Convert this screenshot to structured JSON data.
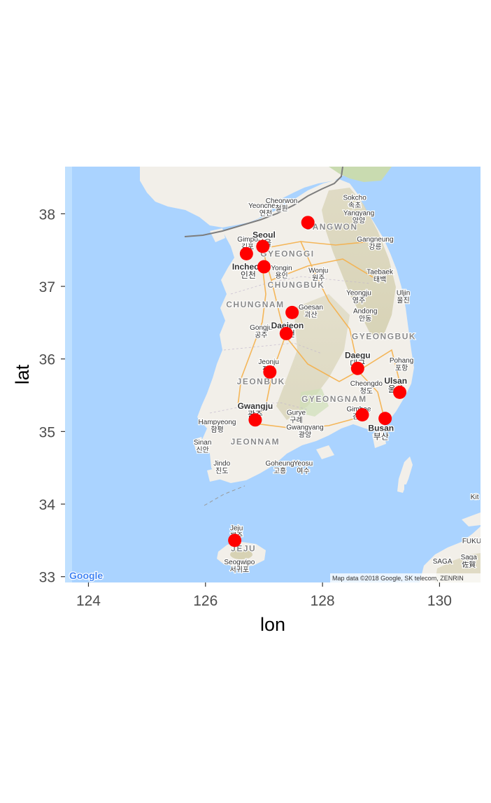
{
  "chart_data": {
    "type": "scatter",
    "xlabel": "lon",
    "ylabel": "lat",
    "xlim": [
      123.6,
      130.7
    ],
    "ylim": [
      32.92,
      38.65
    ],
    "x_ticks": [
      "124",
      "126",
      "128",
      "130"
    ],
    "y_ticks": [
      "33",
      "34",
      "35",
      "36",
      "37",
      "38"
    ],
    "point_color": "#ff0000",
    "points": [
      {
        "x": 127.75,
        "y": 37.88
      },
      {
        "x": 126.98,
        "y": 37.55
      },
      {
        "x": 126.7,
        "y": 37.45
      },
      {
        "x": 127.0,
        "y": 37.27
      },
      {
        "x": 127.48,
        "y": 36.64
      },
      {
        "x": 127.38,
        "y": 36.35
      },
      {
        "x": 128.6,
        "y": 35.87
      },
      {
        "x": 127.1,
        "y": 35.82
      },
      {
        "x": 129.32,
        "y": 35.54
      },
      {
        "x": 128.68,
        "y": 35.23
      },
      {
        "x": 129.07,
        "y": 35.18
      },
      {
        "x": 126.85,
        "y": 35.16
      },
      {
        "x": 126.5,
        "y": 33.5
      }
    ]
  },
  "map": {
    "water_color": "#aad3ff",
    "land_color": "#f2efe9",
    "logo": "Google",
    "attribution": "Map data ©2018 Google, SK telecom, ZENRIN",
    "place_labels": [
      {
        "id": "yeoncheon",
        "name": "Yeoncheon",
        "local": "연천",
        "lon": 127.03,
        "lat": 38.08
      },
      {
        "id": "cheorwon",
        "name": "Cheorwon",
        "local": "철원",
        "lon": 127.3,
        "lat": 38.15
      },
      {
        "id": "sokcho",
        "name": "Sokcho",
        "local": "속초",
        "lon": 128.55,
        "lat": 38.19
      },
      {
        "id": "yangyang",
        "name": "Yangyang",
        "local": "양양",
        "lon": 128.62,
        "lat": 37.98
      },
      {
        "id": "gimpo",
        "name": "Gimpo",
        "local": "김포",
        "lon": 126.72,
        "lat": 37.62
      },
      {
        "id": "seoul",
        "name": "Seoul",
        "local": "서울",
        "lon": 127.0,
        "lat": 37.67
      },
      {
        "id": "gangneung",
        "name": "Gangneung",
        "local": "강릉",
        "lon": 128.9,
        "lat": 37.62
      },
      {
        "id": "incheon",
        "name": "Incheon",
        "local": "인천",
        "lon": 126.73,
        "lat": 37.23
      },
      {
        "id": "yongin",
        "name": "Yongin",
        "local": "용인",
        "lon": 127.3,
        "lat": 37.22
      },
      {
        "id": "wonju",
        "name": "Wonju",
        "local": "원주",
        "lon": 127.93,
        "lat": 37.19
      },
      {
        "id": "taebaek",
        "name": "Taebaek",
        "local": "태백",
        "lon": 128.98,
        "lat": 37.17
      },
      {
        "id": "yeongju",
        "name": "Yeongju",
        "local": "영주",
        "lon": 128.62,
        "lat": 36.88
      },
      {
        "id": "uljin",
        "name": "Uljin",
        "local": "울진",
        "lon": 129.38,
        "lat": 36.88
      },
      {
        "id": "goesan",
        "name": "Goesan",
        "local": "괴산",
        "lon": 127.8,
        "lat": 36.68
      },
      {
        "id": "andong",
        "name": "Andong",
        "local": "안동",
        "lon": 128.73,
        "lat": 36.63
      },
      {
        "id": "gongju",
        "name": "Gongju",
        "local": "공주",
        "lon": 126.95,
        "lat": 36.4
      },
      {
        "id": "daejeon",
        "name": "Daejeon",
        "local": "대전",
        "lon": 127.4,
        "lat": 36.42
      },
      {
        "id": "daegu",
        "name": "Daegu",
        "local": "대구",
        "lon": 128.6,
        "lat": 36.01
      },
      {
        "id": "pohang",
        "name": "Pohang",
        "local": "포항",
        "lon": 129.35,
        "lat": 35.95
      },
      {
        "id": "jeonju",
        "name": "Jeonju",
        "local": "전주",
        "lon": 127.08,
        "lat": 35.93
      },
      {
        "id": "cheongdo",
        "name": "Cheongdo",
        "local": "청도",
        "lon": 128.75,
        "lat": 35.63
      },
      {
        "id": "ulsan",
        "name": "Ulsan",
        "local": "울산",
        "lon": 129.25,
        "lat": 35.66
      },
      {
        "id": "gwangju",
        "name": "Gwangju",
        "local": "광주",
        "lon": 126.85,
        "lat": 35.31
      },
      {
        "id": "gurye",
        "name": "Gurye",
        "local": "구례",
        "lon": 127.55,
        "lat": 35.23
      },
      {
        "id": "gimhae",
        "name": "Gimhae",
        "local": "김해",
        "lon": 128.62,
        "lat": 35.28
      },
      {
        "id": "hampyeong",
        "name": "Hampyeong",
        "local": "함평",
        "lon": 126.2,
        "lat": 35.1
      },
      {
        "id": "gwangyang",
        "name": "Gwangyang",
        "local": "광양",
        "lon": 127.7,
        "lat": 35.03
      },
      {
        "id": "busan",
        "name": "Busan",
        "local": "부산",
        "lon": 129.0,
        "lat": 35.01
      },
      {
        "id": "sinan",
        "name": "Sinan",
        "local": "신안",
        "lon": 125.95,
        "lat": 34.82
      },
      {
        "id": "jindo",
        "name": "Jindo",
        "local": "진도",
        "lon": 126.28,
        "lat": 34.53
      },
      {
        "id": "goheung",
        "name": "Goheung",
        "local": "고흥",
        "lon": 127.27,
        "lat": 34.53
      },
      {
        "id": "yeosu",
        "name": "Yeosu",
        "local": "여수",
        "lon": 127.67,
        "lat": 34.53
      },
      {
        "id": "jeju",
        "name": "Jeju",
        "local": "제주",
        "lon": 126.53,
        "lat": 33.64
      },
      {
        "id": "seogwipo",
        "name": "Seogwipo",
        "local": "서귀포",
        "lon": 126.58,
        "lat": 33.17
      },
      {
        "id": "kit",
        "name": "Kit",
        "local": "",
        "lon": 130.6,
        "lat": 34.07
      },
      {
        "id": "fuku",
        "name": "FUKU",
        "local": "",
        "lon": 130.55,
        "lat": 33.46
      },
      {
        "id": "saga",
        "name": "Saga",
        "local": "佐賀",
        "lon": 130.5,
        "lat": 33.24
      },
      {
        "id": "saga-upper",
        "name": "SAGA",
        "local": "",
        "lon": 130.05,
        "lat": 33.18
      }
    ],
    "region_labels": [
      {
        "id": "gangwon",
        "name": "GANGWON",
        "lon": 128.15,
        "lat": 37.78
      },
      {
        "id": "gyeonggi",
        "name": "GYEONGGI",
        "lon": 127.4,
        "lat": 37.41
      },
      {
        "id": "chungbuk",
        "name": "CHUNGBUK",
        "lon": 127.55,
        "lat": 36.98
      },
      {
        "id": "chungnam",
        "name": "CHUNGNAM",
        "lon": 126.85,
        "lat": 36.71
      },
      {
        "id": "gyeongbuk",
        "name": "GYEONGBUK",
        "lon": 129.05,
        "lat": 36.27
      },
      {
        "id": "jeonbuk",
        "name": "JEONBUK",
        "lon": 126.95,
        "lat": 35.65
      },
      {
        "id": "gyeongnam",
        "name": "GYEONGNAM",
        "lon": 128.2,
        "lat": 35.41
      },
      {
        "id": "jeonnam",
        "name": "JEONNAM",
        "lon": 126.85,
        "lat": 34.82
      },
      {
        "id": "jeju-region",
        "name": "JEJU",
        "lon": 126.65,
        "lat": 33.35
      }
    ]
  }
}
